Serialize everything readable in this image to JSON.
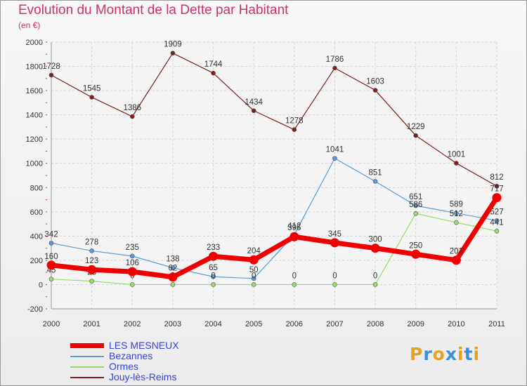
{
  "header": {
    "title": "Evolution du Montant de la Dette par Habitant",
    "subtitle": "(en €)"
  },
  "logo": {
    "letters": [
      "P",
      "r",
      "o",
      "x",
      "i",
      "t",
      "i"
    ],
    "colors": [
      "#e8a020",
      "#3b8fd6",
      "#e8a020",
      "#3b8fd6",
      "#e8a020",
      "#3b8fd6",
      "#e8a020"
    ]
  },
  "chart_data": {
    "type": "line",
    "title": "Evolution du Montant de la Dette par Habitant",
    "ylabel": "(en €)",
    "xlabel": "",
    "ylim": [
      -200,
      2000
    ],
    "yticks": [
      -200,
      0,
      200,
      400,
      600,
      800,
      1000,
      1200,
      1400,
      1600,
      1800,
      2000
    ],
    "grid": true,
    "legend": "bottom-left",
    "categories": [
      "2000",
      "2001",
      "2002",
      "2003",
      "2004",
      "2005",
      "2006",
      "2007",
      "2008",
      "2009",
      "2010",
      "2011"
    ],
    "series": [
      {
        "name": "Jouy-lès-Reims",
        "color": "#7a2020",
        "width": 1.2,
        "values": [
          1728,
          1545,
          1386,
          1909,
          1744,
          1434,
          1278,
          1786,
          1603,
          1229,
          1001,
          812
        ],
        "labels": [
          "1728",
          "1545",
          "1386",
          "1909",
          "1744",
          "1434",
          "1278",
          "1786",
          "1603",
          "1229",
          "1001",
          "812"
        ]
      },
      {
        "name": "Bezannes",
        "color": "#5b9bd5",
        "width": 1.2,
        "values": [
          342,
          278,
          235,
          138,
          65,
          50,
          412,
          1041,
          851,
          651,
          589,
          527
        ],
        "labels": [
          "342",
          "278",
          "235",
          "138",
          "65",
          "50",
          "412",
          "1041",
          "851",
          "651",
          "589",
          "527"
        ]
      },
      {
        "name": "Ormes",
        "color": "#99dd66",
        "width": 1.2,
        "values": [
          45,
          28,
          0,
          0,
          0,
          0,
          0,
          0,
          0,
          586,
          512,
          441
        ],
        "labels": [
          "45",
          "28",
          "0",
          "0",
          "0",
          "0",
          "0",
          "0",
          "0",
          "586",
          "512",
          "441"
        ]
      },
      {
        "name": "LES MESNEUX",
        "color": "#ee0000",
        "width": 7,
        "values": [
          160,
          123,
          106,
          62,
          233,
          204,
          395,
          345,
          300,
          250,
          201,
          717
        ],
        "labels": [
          "160",
          "123",
          "106",
          "62",
          "233",
          "204",
          "395",
          "345",
          "300",
          "250",
          "201",
          "717"
        ]
      }
    ]
  }
}
